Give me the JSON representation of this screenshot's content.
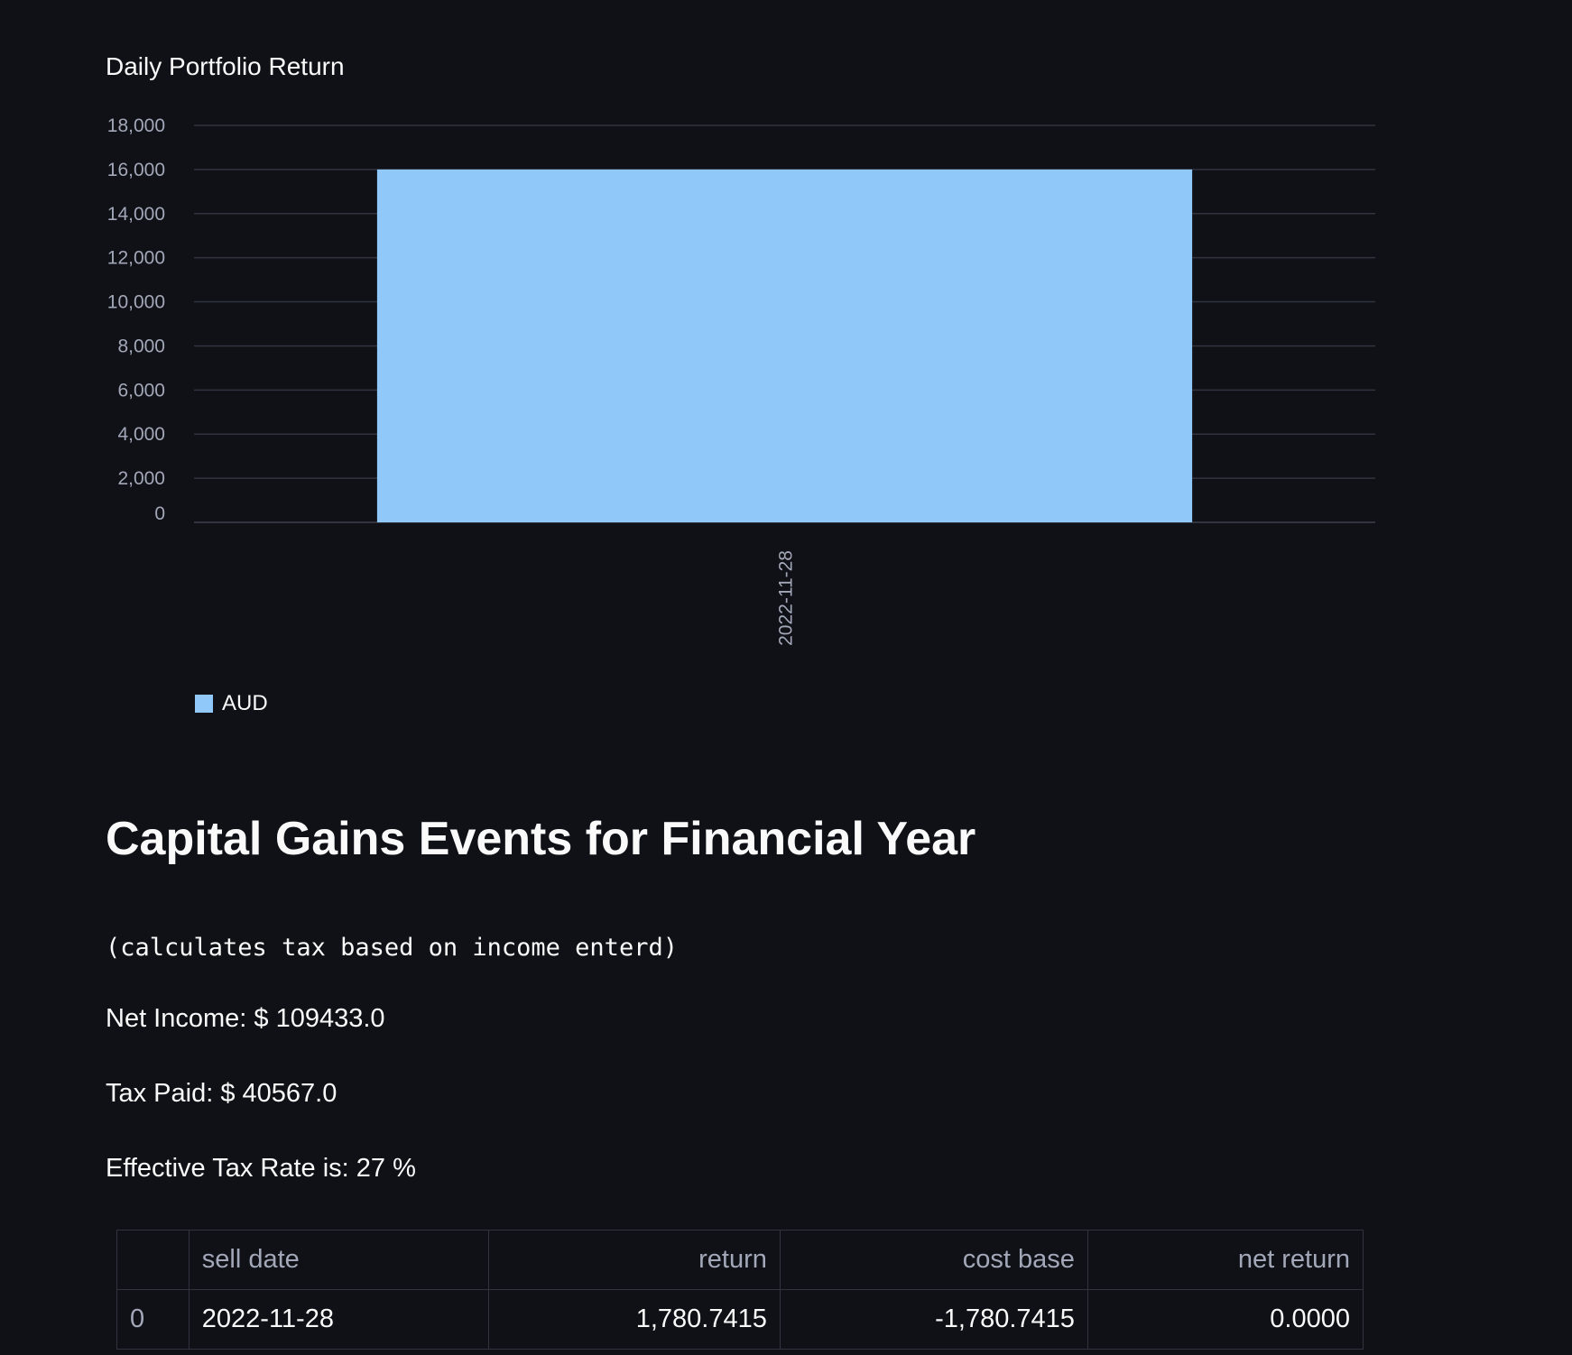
{
  "chart_data": {
    "type": "bar",
    "title": "Daily Portfolio Return",
    "categories": [
      "2022-11-28"
    ],
    "series": [
      {
        "name": "AUD",
        "values": [
          16000
        ]
      }
    ],
    "ylim": [
      0,
      18000
    ],
    "yticks": [
      "0",
      "2,000",
      "4,000",
      "6,000",
      "8,000",
      "10,000",
      "12,000",
      "14,000",
      "16,000",
      "18,000"
    ],
    "ytick_values": [
      0,
      2000,
      4000,
      6000,
      8000,
      10000,
      12000,
      14000,
      16000,
      18000
    ],
    "grid": true,
    "legend": "bottom-left",
    "bar_color": "#90c8fa"
  },
  "colors": {
    "background": "#0f1117",
    "text": "#fafafa",
    "muted_text": "#a3a8b8",
    "grid": "#31333f"
  },
  "section": {
    "title": "Capital Gains Events for Financial Year",
    "note": "(calculates tax based on income enterd)",
    "net_income": "Net Income: $ 109433.0",
    "tax_paid": "Tax Paid: $ 40567.0",
    "effective_rate": "Effective Tax Rate is: 27 %"
  },
  "table": {
    "columns": [
      "",
      "sell date",
      "return",
      "cost base",
      "net return"
    ],
    "rows": [
      [
        "0",
        "2022-11-28",
        "1,780.7415",
        "-1,780.7415",
        "0.0000"
      ]
    ]
  }
}
